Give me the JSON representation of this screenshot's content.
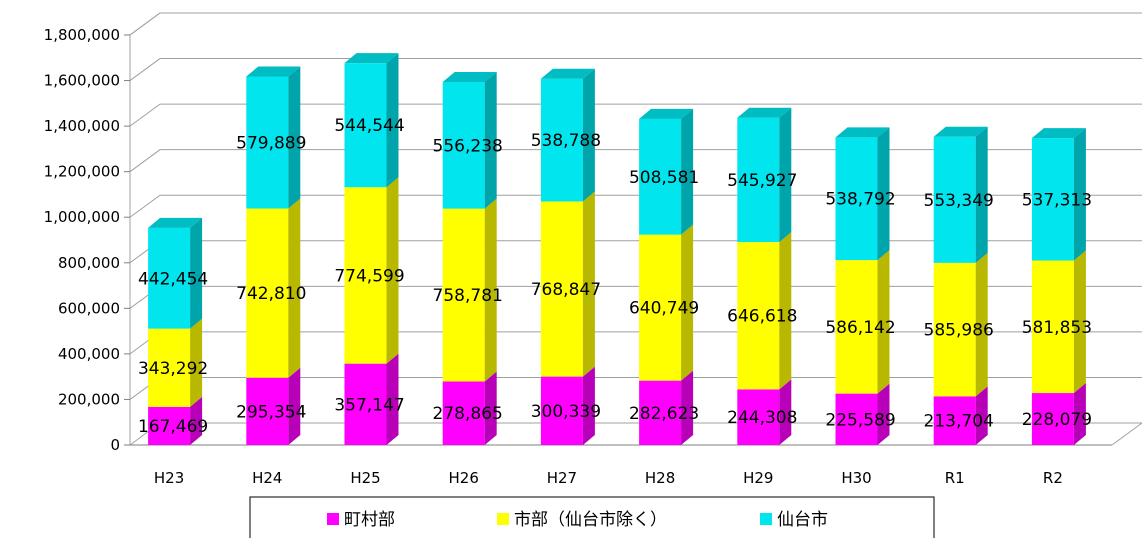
{
  "chart_data": {
    "type": "bar",
    "stacked": true,
    "three_d": true,
    "categories": [
      "H23",
      "H24",
      "H25",
      "H26",
      "H27",
      "H28",
      "H29",
      "H30",
      "R1",
      "R2"
    ],
    "series": [
      {
        "name": "町村部",
        "color": "#ff00ff",
        "values": [
          167469,
          295354,
          357147,
          278865,
          300339,
          282623,
          244308,
          225589,
          213704,
          228079
        ],
        "labels": [
          "167,469",
          "295,354",
          "357,147",
          "278,865",
          "300,339",
          "282,623",
          "244,308",
          "225,589",
          "213,704",
          "228,079"
        ]
      },
      {
        "name": "市部(仙台市除く)",
        "color": "#ffff00",
        "values": [
          343292,
          742810,
          774599,
          758781,
          768847,
          640749,
          646618,
          586142,
          585986,
          581853
        ],
        "labels": [
          "343,292",
          "742,810",
          "774,599",
          "758,781",
          "768,847",
          "640,749",
          "646,618",
          "586,142",
          "585,986",
          "581,853"
        ]
      },
      {
        "name": "仙台市",
        "color": "#00e5ee",
        "values": [
          442454,
          579889,
          544544,
          556238,
          538788,
          508581,
          545927,
          538792,
          553349,
          537313
        ],
        "labels": [
          "442,454",
          "579,889",
          "544,544",
          "556,238",
          "538,788",
          "508,581",
          "545,927",
          "538,792",
          "553,349",
          "537,313"
        ]
      }
    ],
    "ylim": [
      0,
      1800000
    ],
    "yticks": [
      0,
      200000,
      400000,
      600000,
      800000,
      1000000,
      1200000,
      1400000,
      1600000,
      1800000
    ],
    "ytick_labels": [
      "0",
      "200,000",
      "400,000",
      "600,000",
      "800,000",
      "1,000,000",
      "1,200,000",
      "1,400,000",
      "1,600,000",
      "1,800,000"
    ],
    "grid": true,
    "legend_position": "bottom",
    "legend_labels": [
      "町村部",
      "市部（仙台市除く）",
      "仙台市"
    ]
  }
}
